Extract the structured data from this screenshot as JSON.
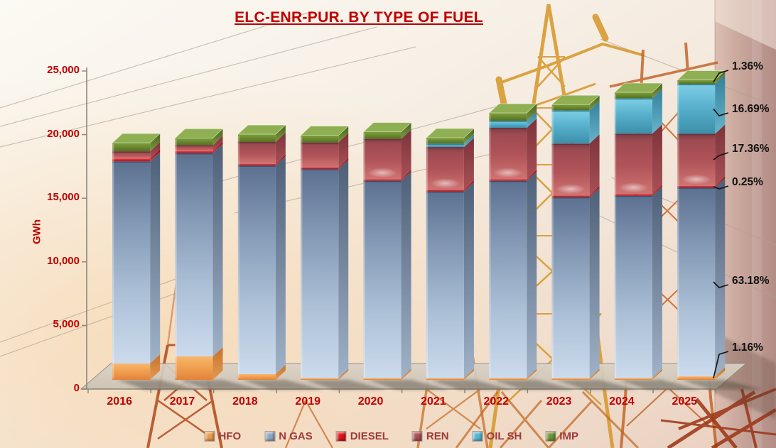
{
  "chart_data": {
    "type": "bar",
    "variant": "3d-stacked-column",
    "title": "ELC-ENR-PUR. BY TYPE OF FUEL",
    "xlabel": "",
    "ylabel": "GWh",
    "ylim": [
      0,
      25000
    ],
    "ytick_labels": [
      "0",
      "5,000",
      "10,000",
      "15,000",
      "20,000",
      "25,000"
    ],
    "grid": false,
    "legend_position": "bottom",
    "categories": [
      "2016",
      "2017",
      "2018",
      "2019",
      "2020",
      "2021",
      "2022",
      "2023",
      "2024",
      "2025"
    ],
    "series": [
      {
        "name": "HFO",
        "color": "#EC9A4C",
        "values": [
          1280,
          1840,
          450,
          110,
          60,
          110,
          60,
          60,
          60,
          270
        ]
      },
      {
        "name": "N GAS",
        "color": "#8FA6BE",
        "values": [
          15900,
          15980,
          16400,
          16440,
          15510,
          14680,
          15510,
          14230,
          14340,
          14850
        ]
      },
      {
        "name": "DIESEL",
        "color": "#DE1218",
        "values": [
          220,
          170,
          120,
          60,
          60,
          60,
          60,
          60,
          60,
          60
        ]
      },
      {
        "name": "REN",
        "color": "#AC4B50",
        "values": [
          560,
          460,
          1710,
          1950,
          3160,
          3350,
          4030,
          4070,
          4740,
          4080
        ]
      },
      {
        "name": "OIL SH",
        "color": "#52B5D2",
        "values": [
          0,
          0,
          0,
          0,
          0,
          280,
          560,
          2620,
          2790,
          3920
        ]
      },
      {
        "name": "IMP",
        "color": "#6F9234",
        "values": [
          670,
          560,
          610,
          560,
          560,
          450,
          610,
          450,
          460,
          320
        ]
      }
    ],
    "callouts": [
      {
        "label": "1.36%",
        "series": "IMP"
      },
      {
        "label": "16.69%",
        "series": "OIL SH"
      },
      {
        "label": "17.36%",
        "series": "REN"
      },
      {
        "label": "0.25%",
        "series": "DIESEL"
      },
      {
        "label": "63.18%",
        "series": "N GAS"
      },
      {
        "label": "1.16%",
        "series": "HFO"
      }
    ]
  }
}
